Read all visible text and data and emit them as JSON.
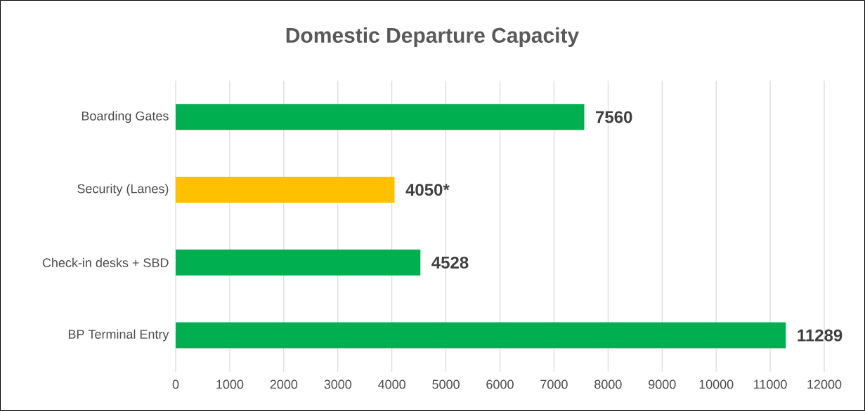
{
  "chart_data": {
    "type": "bar",
    "orientation": "horizontal",
    "title": "Domestic Departure Capacity",
    "categories": [
      "Boarding Gates",
      "Security (Lanes)",
      "Check-in desks + SBD",
      "BP Terminal Entry"
    ],
    "values": [
      7560,
      4050,
      4528,
      11289
    ],
    "colors": [
      "#00b050",
      "#ffc000",
      "#00b050",
      "#00b050"
    ],
    "value_labels": [
      "7560",
      "4050*",
      "4528",
      "11289"
    ],
    "xlim": [
      0,
      12000
    ],
    "xticks": [
      0,
      1000,
      2000,
      3000,
      4000,
      5000,
      6000,
      7000,
      8000,
      9000,
      10000,
      11000,
      12000
    ],
    "grid": "x"
  }
}
